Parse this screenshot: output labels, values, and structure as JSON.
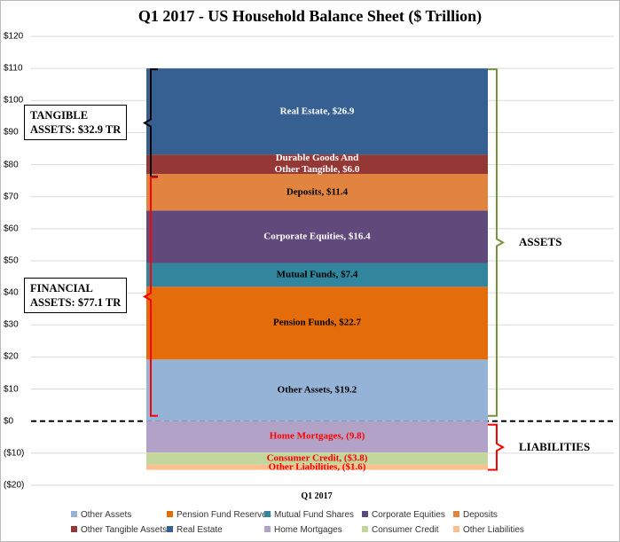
{
  "chart_data": {
    "type": "stacked_bar",
    "title": "Q1 2017 - US Household Balance Sheet ($ Trillion)",
    "categories": [
      "Q1 2017"
    ],
    "ylim": [
      -20,
      120
    ],
    "yticks": [
      {
        "value": -20,
        "label": "($20)"
      },
      {
        "value": -10,
        "label": "($10)"
      },
      {
        "value": 0,
        "label": "$0"
      },
      {
        "value": 10,
        "label": "$10"
      },
      {
        "value": 20,
        "label": "$20"
      },
      {
        "value": 30,
        "label": "$30"
      },
      {
        "value": 40,
        "label": "$40"
      },
      {
        "value": 50,
        "label": "$50"
      },
      {
        "value": 60,
        "label": "$60"
      },
      {
        "value": 70,
        "label": "$70"
      },
      {
        "value": 80,
        "label": "$80"
      },
      {
        "value": 90,
        "label": "$90"
      },
      {
        "value": 100,
        "label": "$100"
      },
      {
        "value": 110,
        "label": "$110"
      },
      {
        "value": 120,
        "label": "$120"
      }
    ],
    "grid": true,
    "series": [
      {
        "name": "Other Assets",
        "color": "#95b3d7",
        "label_color": "#000000",
        "values": [
          19.2
        ],
        "value_labels": [
          "Other Assets, $19.2"
        ]
      },
      {
        "name": "Pension Fund Reserves",
        "color": "#e46c0a",
        "label_color": "#000000",
        "values": [
          22.7
        ],
        "value_labels": [
          "Pension Funds, $22.7"
        ]
      },
      {
        "name": "Mutual Fund Shares",
        "color": "#31859c",
        "label_color": "#000000",
        "values": [
          7.4
        ],
        "value_labels": [
          "Mutual Funds, $7.4"
        ]
      },
      {
        "name": "Corporate Equities",
        "color": "#604a7b",
        "label_color": "#ffffff",
        "values": [
          16.4
        ],
        "value_labels": [
          "Corporate Equities, $16.4"
        ]
      },
      {
        "name": "Deposits",
        "color": "#e0843f",
        "label_color": "#000000",
        "values": [
          11.4
        ],
        "value_labels": [
          "Deposits, $11.4"
        ]
      },
      {
        "name": "Other Tangible Assets",
        "color": "#953735",
        "label_color": "#ffffff",
        "values": [
          6.0
        ],
        "value_labels": [
          "Durable Goods And\nOther Tangible, $6.0"
        ]
      },
      {
        "name": "Real Estate",
        "color": "#376092",
        "label_color": "#ffffff",
        "values": [
          26.9
        ],
        "value_labels": [
          "Real Estate, $26.9"
        ]
      },
      {
        "name": "Home Mortgages",
        "color": "#b3a2c7",
        "label_color": "#ff0000",
        "values": [
          -9.8
        ],
        "value_labels": [
          "Home Mortgages, (9.8)"
        ]
      },
      {
        "name": "Consumer Credit",
        "color": "#c3d69b",
        "label_color": "#ff0000",
        "values": [
          -3.8
        ],
        "value_labels": [
          "Consumer Credit, ($3.8)"
        ]
      },
      {
        "name": "Other Liabilities",
        "color": "#fac090",
        "label_color": "#ff0000",
        "values": [
          -1.6
        ],
        "value_labels": [
          "Other Liabilities, ($1.6)"
        ]
      }
    ],
    "annotations": [
      {
        "text": "TANGIBLE\nASSETS:  $32.9 TR",
        "color": "#000000"
      },
      {
        "text": "FINANCIAL\nASSETS:  $77.1 TR",
        "color": "#ff0000"
      },
      {
        "text": "ASSETS",
        "color": "#77933c"
      },
      {
        "text": "LIABILITIES",
        "color": "#ff0000"
      }
    ]
  }
}
